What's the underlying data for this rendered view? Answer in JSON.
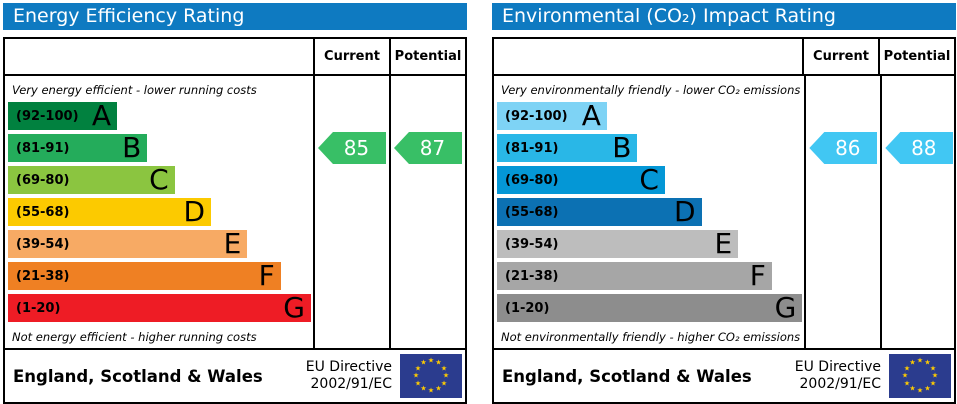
{
  "charts": [
    {
      "title": "Energy Efficiency Rating",
      "title_bg": "#0e7ac1",
      "header": {
        "current": "Current",
        "potential": "Potential"
      },
      "top_caption": "Very energy efficient - lower running costs",
      "bottom_caption": "Not energy efficient - higher running costs",
      "bands": [
        {
          "letter": "A",
          "range": "(92-100)",
          "color": "#01813f",
          "width_pct": 36
        },
        {
          "letter": "B",
          "range": "(81-91)",
          "color": "#24ac5b",
          "width_pct": 46
        },
        {
          "letter": "C",
          "range": "(69-80)",
          "color": "#8bc540",
          "width_pct": 55
        },
        {
          "letter": "D",
          "range": "(55-68)",
          "color": "#fcca00",
          "width_pct": 67
        },
        {
          "letter": "E",
          "range": "(39-54)",
          "color": "#f7aa64",
          "width_pct": 79
        },
        {
          "letter": "F",
          "range": "(21-38)",
          "color": "#ef8023",
          "width_pct": 90
        },
        {
          "letter": "G",
          "range": "(1-20)",
          "color": "#ee1c25",
          "width_pct": 100
        }
      ],
      "current": {
        "value": "85",
        "color": "#38bf66",
        "band_index": 1
      },
      "potential": {
        "value": "87",
        "color": "#38bf66",
        "band_index": 1
      },
      "footer": {
        "region": "England, Scotland & Wales",
        "directive_line1": "EU Directive",
        "directive_line2": "2002/91/EC"
      }
    },
    {
      "title": "Environmental (CO₂) Impact Rating",
      "title_bg": "#0e7ac1",
      "header": {
        "current": "Current",
        "potential": "Potential"
      },
      "top_caption": "Very environmentally friendly - lower CO₂ emissions",
      "bottom_caption": "Not environmentally friendly - higher CO₂ emissions",
      "bands": [
        {
          "letter": "A",
          "range": "(92-100)",
          "color": "#7ed3f5",
          "width_pct": 36
        },
        {
          "letter": "B",
          "range": "(81-91)",
          "color": "#29b7e7",
          "width_pct": 46
        },
        {
          "letter": "C",
          "range": "(69-80)",
          "color": "#0497d6",
          "width_pct": 55
        },
        {
          "letter": "D",
          "range": "(55-68)",
          "color": "#0c71b3",
          "width_pct": 67
        },
        {
          "letter": "E",
          "range": "(39-54)",
          "color": "#bdbdbd",
          "width_pct": 79
        },
        {
          "letter": "F",
          "range": "(21-38)",
          "color": "#a6a6a6",
          "width_pct": 90
        },
        {
          "letter": "G",
          "range": "(1-20)",
          "color": "#8d8d8d",
          "width_pct": 100
        }
      ],
      "current": {
        "value": "86",
        "color": "#41c7f3",
        "band_index": 1
      },
      "potential": {
        "value": "88",
        "color": "#41c7f3",
        "band_index": 1
      },
      "footer": {
        "region": "England, Scotland & Wales",
        "directive_line1": "EU Directive",
        "directive_line2": "2002/91/EC"
      }
    }
  ],
  "eu_flag": {
    "background": "#2b3c8e",
    "star_color": "#ffcc00",
    "star_glyph": "★"
  },
  "chart_data": [
    {
      "type": "bar",
      "title": "Energy Efficiency Rating",
      "categories": [
        "A",
        "B",
        "C",
        "D",
        "E",
        "F",
        "G"
      ],
      "band_ranges": [
        [
          92,
          100
        ],
        [
          81,
          91
        ],
        [
          69,
          80
        ],
        [
          55,
          68
        ],
        [
          39,
          54
        ],
        [
          21,
          38
        ],
        [
          1,
          20
        ]
      ],
      "bar_width_pct": [
        36,
        46,
        55,
        67,
        79,
        90,
        100
      ],
      "current": 85,
      "potential": 87,
      "current_band": "B",
      "potential_band": "B",
      "scale_min": 1,
      "scale_max": 100,
      "top_caption": "Very energy efficient - lower running costs",
      "bottom_caption": "Not energy efficient - higher running costs",
      "region": "England, Scotland & Wales",
      "directive": "EU Directive 2002/91/EC"
    },
    {
      "type": "bar",
      "title": "Environmental (CO₂) Impact Rating",
      "categories": [
        "A",
        "B",
        "C",
        "D",
        "E",
        "F",
        "G"
      ],
      "band_ranges": [
        [
          92,
          100
        ],
        [
          81,
          91
        ],
        [
          69,
          80
        ],
        [
          55,
          68
        ],
        [
          39,
          54
        ],
        [
          21,
          38
        ],
        [
          1,
          20
        ]
      ],
      "bar_width_pct": [
        36,
        46,
        55,
        67,
        79,
        90,
        100
      ],
      "current": 86,
      "potential": 88,
      "current_band": "B",
      "potential_band": "B",
      "scale_min": 1,
      "scale_max": 100,
      "top_caption": "Very environmentally friendly - lower CO₂ emissions",
      "bottom_caption": "Not environmentally friendly - higher CO₂ emissions",
      "region": "England, Scotland & Wales",
      "directive": "EU Directive 2002/91/EC"
    }
  ]
}
